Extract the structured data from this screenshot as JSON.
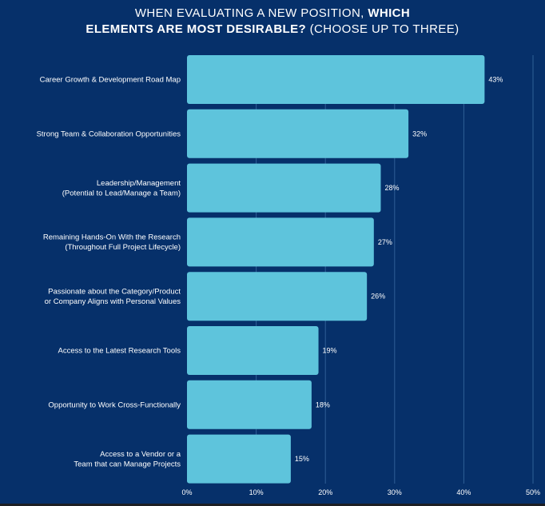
{
  "title": {
    "line1_normal": "WHEN EVALUATING A NEW POSITION, ",
    "line1_bold": "WHICH",
    "line2_bold": "ELEMENTS ARE MOST DESIRABLE?",
    "line2_normal": " (CHOOSE UP TO THREE)"
  },
  "colors": {
    "background": "#06306a",
    "bar": "#5ec4dc",
    "gridline": "#2f5f96",
    "text": "#ffffff"
  },
  "chart_data": {
    "type": "bar",
    "orientation": "horizontal",
    "title": "WHEN EVALUATING A NEW POSITION, WHICH ELEMENTS ARE MOST DESIRABLE? (CHOOSE UP TO THREE)",
    "categories": [
      [
        "Career Growth  & Development Road Map"
      ],
      [
        "Strong Team & Collaboration Opportunities"
      ],
      [
        "Leadership/Management",
        "(Potential to Lead/Manage a Team)"
      ],
      [
        "Remaining Hands-On With the Research",
        "(Throughout Full Project Lifecycle)"
      ],
      [
        "Passionate about the Category/Product",
        "or Company Aligns with Personal Values"
      ],
      [
        "Access to the Latest Research Tools"
      ],
      [
        "Opportunity to Work Cross-Functionally"
      ],
      [
        "Access to a Vendor or a",
        "Team that can Manage Projects"
      ]
    ],
    "values": [
      43,
      32,
      28,
      27,
      26,
      19,
      18,
      15
    ],
    "value_labels": [
      "43%",
      "32%",
      "28%",
      "27%",
      "26%",
      "19%",
      "18%",
      "15%"
    ],
    "xlim": [
      0,
      50
    ],
    "xticks": [
      0,
      10,
      20,
      30,
      40,
      50
    ],
    "xtick_labels": [
      "0%",
      "10%",
      "20%",
      "30%",
      "40%",
      "50%"
    ],
    "xlabel": "",
    "ylabel": "",
    "grid": true
  }
}
